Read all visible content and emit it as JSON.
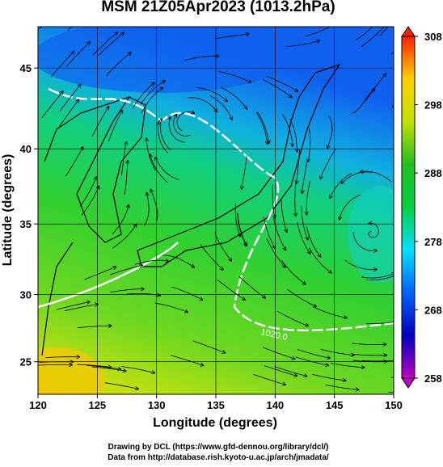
{
  "chart_data": {
    "type": "map",
    "title": "MSM 21Z05Apr2023 (1013.2hPa)",
    "x_label": "Longitude (degrees)",
    "y_label": "Latitude  (degrees)",
    "xlim": [
      120,
      150
    ],
    "xticks": [
      120,
      125,
      130,
      135,
      140,
      145,
      150
    ],
    "ylim": [
      22.5,
      47.4
    ],
    "yticks": [
      25,
      30,
      35,
      40,
      45
    ],
    "projection": "mercator",
    "grid": true,
    "colorbar": {
      "lim": [
        258,
        308
      ],
      "ticks": [
        258,
        268,
        278,
        288,
        298,
        308
      ],
      "colors": [
        "#c000c0",
        "#0000c0",
        "#0060ff",
        "#00e0ff",
        "#00d040",
        "#20c020",
        "#c0e000",
        "#ffd000",
        "#ff2000"
      ]
    },
    "contour_label": "1020.0",
    "footer": [
      "Drawing by DCL (https://www.gfd-dennou.org/library/dcl/)",
      "Data from http://database.rish.kyoto-u.ac.jp/arch/jmadata/"
    ]
  }
}
